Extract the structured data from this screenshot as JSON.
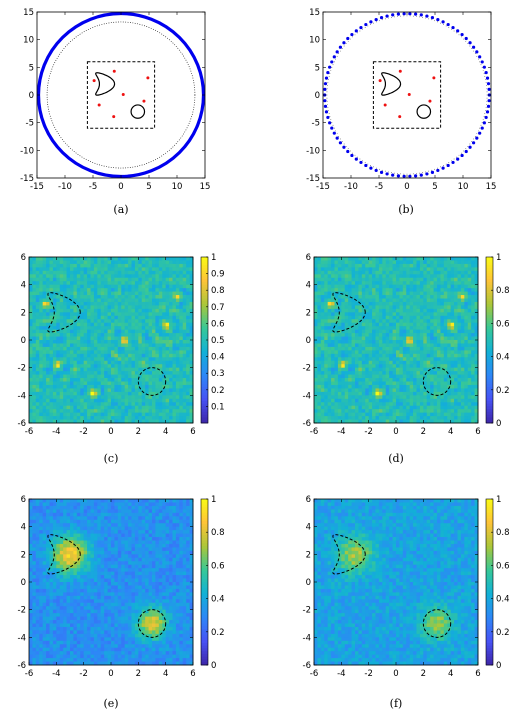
{
  "figure": {
    "panels": [
      {
        "id": "a",
        "caption": "(a)",
        "chart_data": {
          "type": "scatter",
          "xlim": [
            -15,
            15
          ],
          "ylim": [
            -15,
            15
          ],
          "xticks": [
            -15,
            -10,
            -5,
            0,
            5,
            10,
            15
          ],
          "yticks": [
            -15,
            -10,
            -5,
            0,
            5,
            10,
            15
          ],
          "measurement_circle": {
            "center": [
              0,
              0
            ],
            "radius": 15,
            "style": "solid",
            "color": "#0000ee"
          },
          "inner_circle": {
            "center": [
              0,
              0
            ],
            "radius": 13.2,
            "style": "dotted",
            "color": "#000000"
          },
          "sampling_box": {
            "x": [
              -6,
              6
            ],
            "y": [
              -6,
              6
            ],
            "style": "dashed"
          },
          "point_sources": [
            [
              -4.8,
              2.6
            ],
            [
              -1.2,
              4.3
            ],
            [
              4.8,
              3.1
            ],
            [
              -3.9,
              -1.8
            ],
            [
              4.1,
              -1.1
            ],
            [
              -1.3,
              -3.9
            ],
            [
              0.4,
              0.1
            ]
          ],
          "point_color": "#ee1111",
          "kite_obstacle": {
            "center": [
              -2.5,
              2
            ]
          },
          "disk_obstacle": {
            "center": [
              3,
              -3
            ],
            "radius": 1.2
          }
        }
      },
      {
        "id": "b",
        "caption": "(b)",
        "chart_data": {
          "type": "scatter",
          "xlim": [
            -15,
            15
          ],
          "ylim": [
            -15,
            15
          ],
          "xticks": [
            -15,
            -10,
            -5,
            0,
            5,
            10,
            15
          ],
          "yticks": [
            -15,
            -10,
            -5,
            0,
            5,
            10,
            15
          ],
          "measurement_points": {
            "count": 90,
            "radius": 15,
            "color": "#0000ee"
          },
          "inner_points": {
            "count": 160,
            "radius": 14.3,
            "color": "#000000"
          },
          "sampling_box": {
            "x": [
              -6,
              6
            ],
            "y": [
              -6,
              6
            ],
            "style": "dashed"
          },
          "point_sources": [
            [
              -4.8,
              2.6
            ],
            [
              -1.2,
              4.3
            ],
            [
              4.8,
              3.1
            ],
            [
              -3.9,
              -1.8
            ],
            [
              4.1,
              -1.1
            ],
            [
              -1.3,
              -3.9
            ],
            [
              0.4,
              0.1
            ]
          ],
          "point_color": "#ee1111",
          "kite_obstacle": {
            "center": [
              -2.5,
              2
            ]
          },
          "disk_obstacle": {
            "center": [
              3,
              -3
            ],
            "radius": 1.2
          }
        }
      },
      {
        "id": "c",
        "caption": "(c)",
        "chart_data": {
          "type": "heatmap",
          "pattern": "ripple",
          "xlim": [
            -6,
            6
          ],
          "ylim": [
            -6,
            6
          ],
          "xticks": [
            -6,
            -4,
            -2,
            0,
            2,
            4,
            6
          ],
          "yticks": [
            -6,
            -4,
            -2,
            0,
            2,
            4,
            6
          ],
          "clim": [
            0,
            1
          ],
          "colorbar_ticks": [
            "0.1",
            "0.2",
            "0.3",
            "0.4",
            "0.5",
            "0.6",
            "0.7",
            "0.8",
            "0.9",
            "1"
          ],
          "background_level": 0.5,
          "hotspots": [
            [
              -4.8,
              2.6
            ],
            [
              -3.9,
              -1.8
            ],
            [
              -1.3,
              -3.9
            ],
            [
              4.8,
              3.1
            ],
            [
              4.1,
              1.1
            ],
            [
              1,
              0
            ]
          ],
          "kite_obstacle": {
            "center": [
              -3.2,
              2
            ]
          },
          "disk_obstacle": {
            "center": [
              3,
              -3
            ],
            "radius": 1
          }
        }
      },
      {
        "id": "d",
        "caption": "(d)",
        "chart_data": {
          "type": "heatmap",
          "pattern": "ripple",
          "xlim": [
            -6,
            6
          ],
          "ylim": [
            -6,
            6
          ],
          "xticks": [
            -6,
            -4,
            -2,
            0,
            2,
            4,
            6
          ],
          "yticks": [
            -6,
            -4,
            -2,
            0,
            2,
            4,
            6
          ],
          "clim": [
            0,
            1
          ],
          "colorbar_ticks": [
            "0",
            "0.2",
            "0.4",
            "0.6",
            "0.8",
            "1"
          ],
          "background_level": 0.5,
          "hotspots": [
            [
              -4.8,
              2.6
            ],
            [
              -3.9,
              -1.8
            ],
            [
              -1.3,
              -3.9
            ],
            [
              4.8,
              3.1
            ],
            [
              4.1,
              1.1
            ],
            [
              1,
              0
            ]
          ],
          "kite_obstacle": {
            "center": [
              -3.2,
              2
            ]
          },
          "disk_obstacle": {
            "center": [
              3,
              -3
            ],
            "radius": 1
          }
        }
      },
      {
        "id": "e",
        "caption": "(e)",
        "chart_data": {
          "type": "heatmap",
          "pattern": "blob",
          "xlim": [
            -6,
            6
          ],
          "ylim": [
            -6,
            6
          ],
          "xticks": [
            -6,
            -4,
            -2,
            0,
            2,
            4,
            6
          ],
          "yticks": [
            -6,
            -4,
            -2,
            0,
            2,
            4,
            6
          ],
          "clim": [
            0,
            1
          ],
          "colorbar_ticks": [
            "0",
            "0.2",
            "0.4",
            "0.6",
            "0.8",
            "1"
          ],
          "background_level": 0.32,
          "blobs": [
            {
              "center": [
                -3,
                2
              ],
              "peak": 0.88,
              "spread": 1.6
            },
            {
              "center": [
                3,
                -3
              ],
              "peak": 0.8,
              "spread": 1.3
            }
          ],
          "kite_obstacle": {
            "center": [
              -3.2,
              2
            ]
          },
          "disk_obstacle": {
            "center": [
              3,
              -3
            ],
            "radius": 1
          }
        }
      },
      {
        "id": "f",
        "caption": "(f)",
        "chart_data": {
          "type": "heatmap",
          "pattern": "blob",
          "xlim": [
            -6,
            6
          ],
          "ylim": [
            -6,
            6
          ],
          "xticks": [
            -6,
            -4,
            -2,
            0,
            2,
            4,
            6
          ],
          "yticks": [
            -6,
            -4,
            -2,
            0,
            2,
            4,
            6
          ],
          "clim": [
            0,
            1
          ],
          "colorbar_ticks": [
            "0",
            "0.2",
            "0.4",
            "0.6",
            "0.8",
            "1"
          ],
          "background_level": 0.38,
          "blobs": [
            {
              "center": [
                -3,
                2
              ],
              "peak": 0.72,
              "spread": 1.6
            },
            {
              "center": [
                3,
                -3
              ],
              "peak": 0.68,
              "spread": 1.4
            }
          ],
          "kite_obstacle": {
            "center": [
              -3.2,
              2
            ]
          },
          "disk_obstacle": {
            "center": [
              3,
              -3
            ],
            "radius": 1
          }
        }
      }
    ]
  }
}
